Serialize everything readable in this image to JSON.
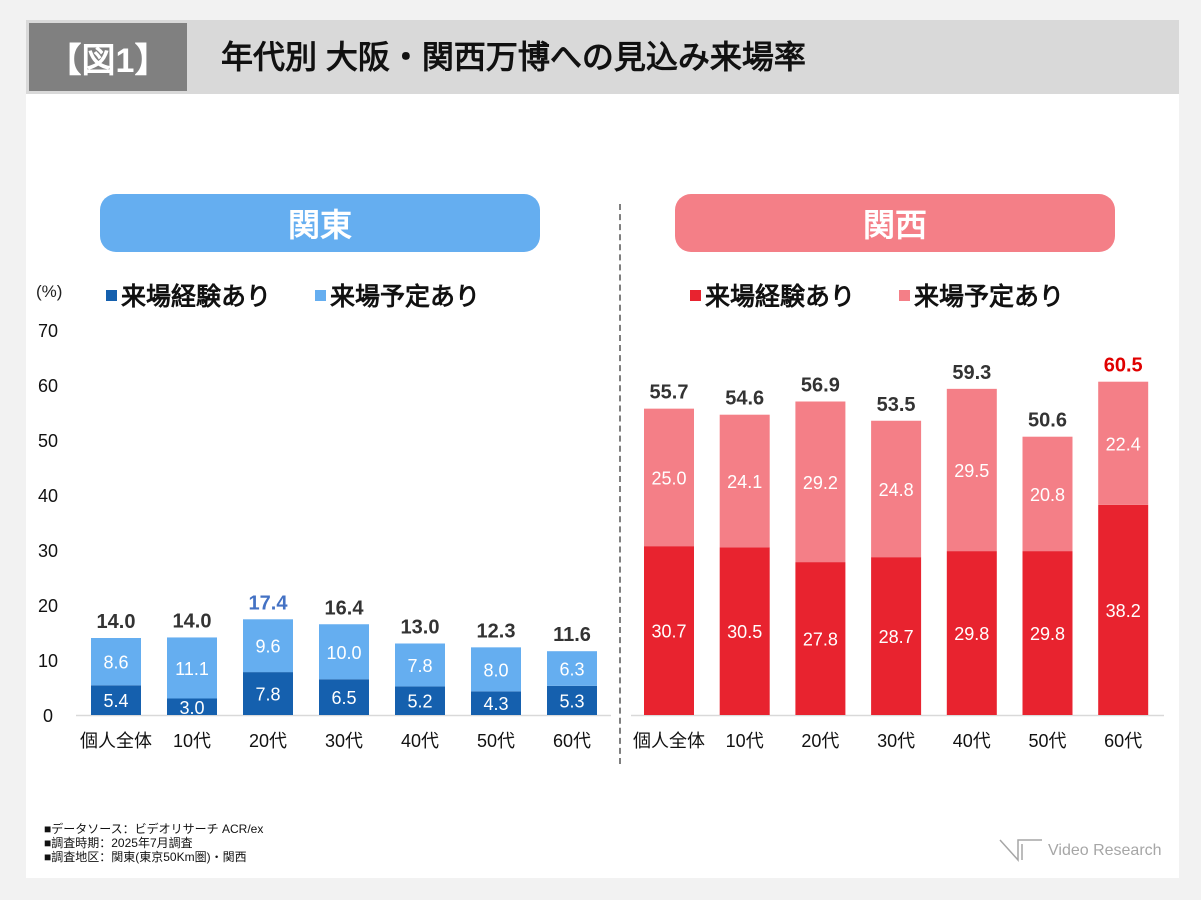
{
  "header": {
    "figure_label": "【図1】",
    "title": "年代別 大阪・関西万博への見込み来場率"
  },
  "unit_label": "(%)",
  "panels": {
    "kanto": {
      "label": "関東"
    },
    "kansai": {
      "label": "関西"
    }
  },
  "legend": {
    "kanto": [
      {
        "label": "来場経験あり",
        "color": "#1560ae"
      },
      {
        "label": "来場予定あり",
        "color": "#65aef0"
      }
    ],
    "kansai": [
      {
        "label": "来場経験あり",
        "color": "#e8232f"
      },
      {
        "label": "来場予定あり",
        "color": "#f47f87"
      }
    ]
  },
  "chart_data": [
    {
      "type": "bar",
      "stacked": true,
      "title": "関東",
      "ylabel": "(%)",
      "ylim": [
        0,
        70
      ],
      "yticks": [
        0,
        10,
        20,
        30,
        40,
        50,
        60,
        70
      ],
      "categories": [
        "個人全体",
        "10代",
        "20代",
        "30代",
        "40代",
        "50代",
        "60代"
      ],
      "series": [
        {
          "name": "来場経験あり",
          "color": "#1560ae",
          "values": [
            5.4,
            3.0,
            7.8,
            6.5,
            5.2,
            4.3,
            5.3
          ]
        },
        {
          "name": "来場予定あり",
          "color": "#65aef0",
          "values": [
            8.6,
            11.1,
            9.6,
            10.0,
            7.8,
            8.0,
            6.3
          ]
        }
      ],
      "totals": [
        "14.0",
        "14.0",
        "17.4",
        "16.4",
        "13.0",
        "12.3",
        "11.6"
      ],
      "highlight_index": 2,
      "highlight_color": "#4472c4"
    },
    {
      "type": "bar",
      "stacked": true,
      "title": "関西",
      "ylabel": "(%)",
      "ylim": [
        0,
        70
      ],
      "categories": [
        "個人全体",
        "10代",
        "20代",
        "30代",
        "40代",
        "50代",
        "60代"
      ],
      "series": [
        {
          "name": "来場経験あり",
          "color": "#e8232f",
          "values": [
            30.7,
            30.5,
            27.8,
            28.7,
            29.8,
            29.8,
            38.2
          ]
        },
        {
          "name": "来場予定あり",
          "color": "#f47f87",
          "values": [
            25.0,
            24.1,
            29.2,
            24.8,
            29.5,
            20.8,
            22.4
          ]
        }
      ],
      "totals": [
        "55.7",
        "54.6",
        "56.9",
        "53.5",
        "59.3",
        "50.6",
        "60.5"
      ],
      "highlight_index": 6,
      "highlight_color": "#e00000"
    }
  ],
  "footnotes": [
    "■データソース：ビデオリサーチ ACR/ex",
    "■調査時期：2025年7月調査",
    "■調査地区：関東(東京50Km圏)・関西"
  ],
  "logo": {
    "text": "Video Research"
  }
}
